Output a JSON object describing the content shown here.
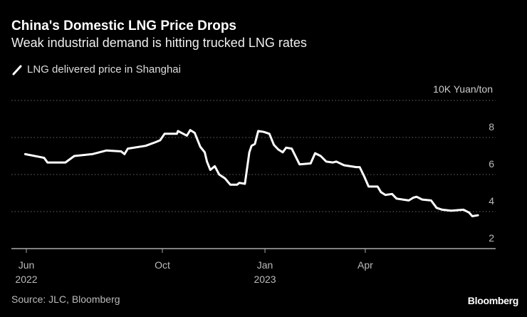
{
  "header": {
    "title": "China's Domestic LNG Price Drops",
    "subtitle": "Weak industrial demand is hitting trucked LNG rates"
  },
  "footer": {
    "source": "Source: JLC, Bloomberg",
    "brand": "Bloomberg"
  },
  "chart_data": {
    "type": "line",
    "title": "China's Domestic LNG Price Drops",
    "subtitle": "Weak industrial demand is hitting trucked LNG rates",
    "xlabel": "",
    "ylabel": "10K Yuan/ton",
    "ylim": [
      2,
      10
    ],
    "yticks": [
      2,
      4,
      6,
      8
    ],
    "grid": true,
    "legend_position": "top-left",
    "x_ticks": [
      {
        "date": "2022-06-01",
        "line1": "Jun",
        "line2": "2022"
      },
      {
        "date": "2022-10-01",
        "line1": "Oct",
        "line2": ""
      },
      {
        "date": "2023-01-01",
        "line1": "Jan",
        "line2": "2023"
      },
      {
        "date": "2023-04-01",
        "line1": "Apr",
        "line2": ""
      }
    ],
    "x_range": [
      "2022-05-31",
      "2023-07-31"
    ],
    "series": [
      {
        "name": "LNG delivered price in Shanghai",
        "color": "#ffffff",
        "points": [
          [
            "2022-05-31",
            7.1
          ],
          [
            "2022-06-13",
            6.95
          ],
          [
            "2022-06-17",
            6.9
          ],
          [
            "2022-06-20",
            6.65
          ],
          [
            "2022-07-06",
            6.65
          ],
          [
            "2022-07-14",
            7.0
          ],
          [
            "2022-07-30",
            7.1
          ],
          [
            "2022-08-12",
            7.3
          ],
          [
            "2022-08-25",
            7.25
          ],
          [
            "2022-08-28",
            7.1
          ],
          [
            "2022-08-31",
            7.4
          ],
          [
            "2022-09-16",
            7.55
          ],
          [
            "2022-09-25",
            7.75
          ],
          [
            "2022-09-29",
            7.85
          ],
          [
            "2022-10-03",
            8.2
          ],
          [
            "2022-10-14",
            8.2
          ],
          [
            "2022-10-15",
            8.35
          ],
          [
            "2022-10-23",
            8.1
          ],
          [
            "2022-10-26",
            8.4
          ],
          [
            "2022-10-30",
            8.25
          ],
          [
            "2022-11-04",
            7.5
          ],
          [
            "2022-11-08",
            7.2
          ],
          [
            "2022-11-10",
            6.7
          ],
          [
            "2022-11-13",
            6.25
          ],
          [
            "2022-11-17",
            6.45
          ],
          [
            "2022-11-21",
            6.0
          ],
          [
            "2022-11-26",
            5.8
          ],
          [
            "2022-12-01",
            5.45
          ],
          [
            "2022-12-07",
            5.45
          ],
          [
            "2022-12-09",
            5.55
          ],
          [
            "2022-12-14",
            5.5
          ],
          [
            "2022-12-18",
            7.2
          ],
          [
            "2022-12-20",
            7.55
          ],
          [
            "2022-12-23",
            7.65
          ],
          [
            "2022-12-26",
            8.35
          ],
          [
            "2022-12-31",
            8.3
          ],
          [
            "2023-01-05",
            8.2
          ],
          [
            "2023-01-09",
            7.6
          ],
          [
            "2023-01-13",
            7.35
          ],
          [
            "2023-01-17",
            7.2
          ],
          [
            "2023-01-20",
            7.45
          ],
          [
            "2023-01-25",
            7.4
          ],
          [
            "2023-02-01",
            6.55
          ],
          [
            "2023-02-11",
            6.6
          ],
          [
            "2023-02-15",
            7.15
          ],
          [
            "2023-02-20",
            7.0
          ],
          [
            "2023-02-25",
            6.7
          ],
          [
            "2023-03-03",
            6.65
          ],
          [
            "2023-03-06",
            6.7
          ],
          [
            "2023-03-13",
            6.5
          ],
          [
            "2023-03-24",
            6.4
          ],
          [
            "2023-03-27",
            6.4
          ],
          [
            "2023-03-31",
            5.9
          ],
          [
            "2023-04-04",
            5.35
          ],
          [
            "2023-04-12",
            5.35
          ],
          [
            "2023-04-15",
            5.05
          ],
          [
            "2023-04-19",
            4.9
          ],
          [
            "2023-04-25",
            4.95
          ],
          [
            "2023-04-29",
            4.7
          ],
          [
            "2023-05-10",
            4.6
          ],
          [
            "2023-05-14",
            4.75
          ],
          [
            "2023-05-17",
            4.8
          ],
          [
            "2023-05-22",
            4.65
          ],
          [
            "2023-05-30",
            4.6
          ],
          [
            "2023-06-04",
            4.2
          ],
          [
            "2023-06-09",
            4.1
          ],
          [
            "2023-06-17",
            4.05
          ],
          [
            "2023-06-28",
            4.1
          ],
          [
            "2023-07-03",
            3.95
          ],
          [
            "2023-07-06",
            3.75
          ],
          [
            "2023-07-11",
            3.8
          ]
        ]
      }
    ]
  }
}
